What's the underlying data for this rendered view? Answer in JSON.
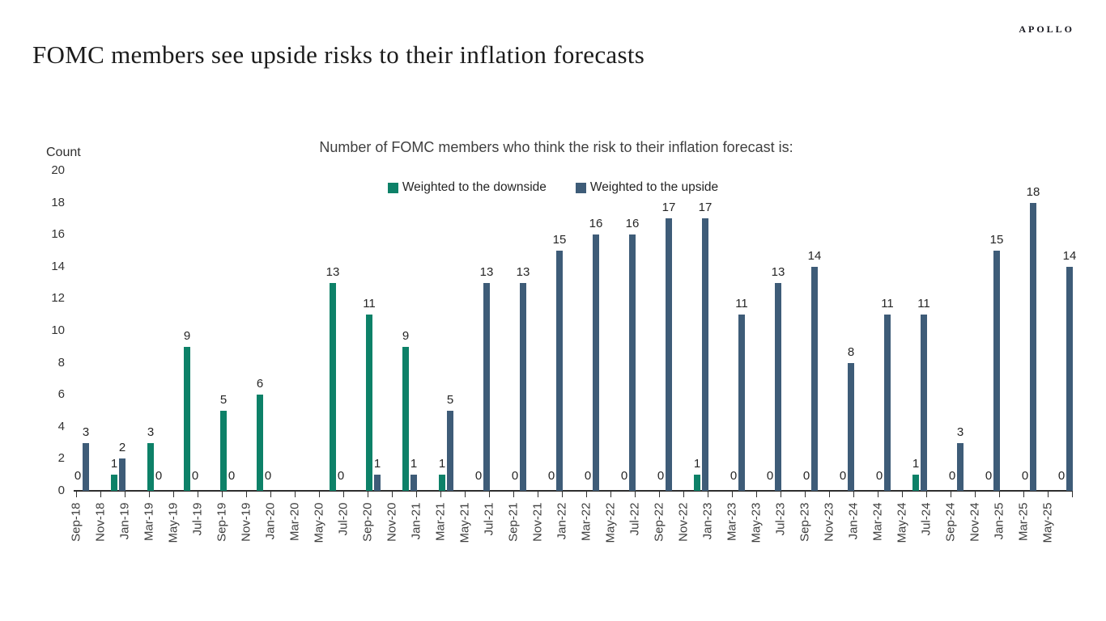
{
  "header": {
    "title": "FOMC members see upside risks to their inflation forecasts",
    "brand": "APOLLO"
  },
  "chart_data": {
    "type": "bar",
    "title": "Number of FOMC members who think the risk to their inflation forecast is:",
    "ylabel": "Count",
    "ylim": [
      0,
      20
    ],
    "yticks": [
      0,
      2,
      4,
      6,
      8,
      10,
      12,
      14,
      16,
      18,
      20
    ],
    "grid": false,
    "legend_position": "top-center",
    "series": [
      {
        "name": "Weighted to the downside",
        "color": "#0d8168"
      },
      {
        "name": "Weighted to the upside",
        "color": "#3e5c78"
      }
    ],
    "x_axis": {
      "tick_interval_months": 2,
      "tick_labels": [
        "Sep-18",
        "Nov-18",
        "Jan-19",
        "Mar-19",
        "May-19",
        "Jul-19",
        "Sep-19",
        "Nov-19",
        "Jan-20",
        "Mar-20",
        "May-20",
        "Jul-20",
        "Sep-20",
        "Nov-20",
        "Jan-21",
        "Mar-21",
        "May-21",
        "Jul-21",
        "Sep-21",
        "Nov-21",
        "Jan-22",
        "Mar-22",
        "May-22",
        "Jul-22",
        "Sep-22",
        "Nov-22",
        "Jan-23",
        "Mar-23",
        "May-23",
        "Jul-23",
        "Sep-23",
        "Nov-23",
        "Jan-24",
        "Mar-24",
        "May-24",
        "Jul-24",
        "Sep-24",
        "Nov-24",
        "Jan-25",
        "Mar-25",
        "May-25"
      ]
    },
    "groups": [
      {
        "date": "Sep-18",
        "months_from_start": 0,
        "downside": 0,
        "upside": 3
      },
      {
        "date": "Dec-18",
        "months_from_start": 3,
        "downside": 1,
        "upside": 2
      },
      {
        "date": "Mar-19",
        "months_from_start": 6,
        "downside": 3,
        "upside": 0
      },
      {
        "date": "Jun-19",
        "months_from_start": 9,
        "downside": 9,
        "upside": 0
      },
      {
        "date": "Sep-19",
        "months_from_start": 12,
        "downside": 5,
        "upside": 0
      },
      {
        "date": "Dec-19",
        "months_from_start": 15,
        "downside": 6,
        "upside": 0
      },
      {
        "date": "Jun-20",
        "months_from_start": 21,
        "downside": 13,
        "upside": 0
      },
      {
        "date": "Sep-20",
        "months_from_start": 24,
        "downside": 11,
        "upside": 1
      },
      {
        "date": "Dec-20",
        "months_from_start": 27,
        "downside": 9,
        "upside": 1
      },
      {
        "date": "Mar-21",
        "months_from_start": 30,
        "downside": 1,
        "upside": 5
      },
      {
        "date": "Jun-21",
        "months_from_start": 33,
        "downside": 0,
        "upside": 13
      },
      {
        "date": "Sep-21",
        "months_from_start": 36,
        "downside": 0,
        "upside": 13
      },
      {
        "date": "Dec-21",
        "months_from_start": 39,
        "downside": 0,
        "upside": 15
      },
      {
        "date": "Mar-22",
        "months_from_start": 42,
        "downside": 0,
        "upside": 16
      },
      {
        "date": "Jun-22",
        "months_from_start": 45,
        "downside": 0,
        "upside": 16
      },
      {
        "date": "Sep-22",
        "months_from_start": 48,
        "downside": 0,
        "upside": 17
      },
      {
        "date": "Dec-22",
        "months_from_start": 51,
        "downside": 1,
        "upside": 17
      },
      {
        "date": "Mar-23",
        "months_from_start": 54,
        "downside": 0,
        "upside": 11
      },
      {
        "date": "Jun-23",
        "months_from_start": 57,
        "downside": 0,
        "upside": 13
      },
      {
        "date": "Sep-23",
        "months_from_start": 60,
        "downside": 0,
        "upside": 14
      },
      {
        "date": "Dec-23",
        "months_from_start": 63,
        "downside": 0,
        "upside": 8
      },
      {
        "date": "Mar-24",
        "months_from_start": 66,
        "downside": 0,
        "upside": 11
      },
      {
        "date": "Jun-24",
        "months_from_start": 69,
        "downside": 1,
        "upside": 11
      },
      {
        "date": "Sep-24",
        "months_from_start": 72,
        "downside": 0,
        "upside": 3
      },
      {
        "date": "Dec-24",
        "months_from_start": 75,
        "downside": 0,
        "upside": 15
      },
      {
        "date": "Mar-25",
        "months_from_start": 78,
        "downside": 0,
        "upside": 18
      },
      {
        "date": "Jun-25",
        "months_from_start": 81,
        "downside": 0,
        "upside": 14
      }
    ]
  }
}
